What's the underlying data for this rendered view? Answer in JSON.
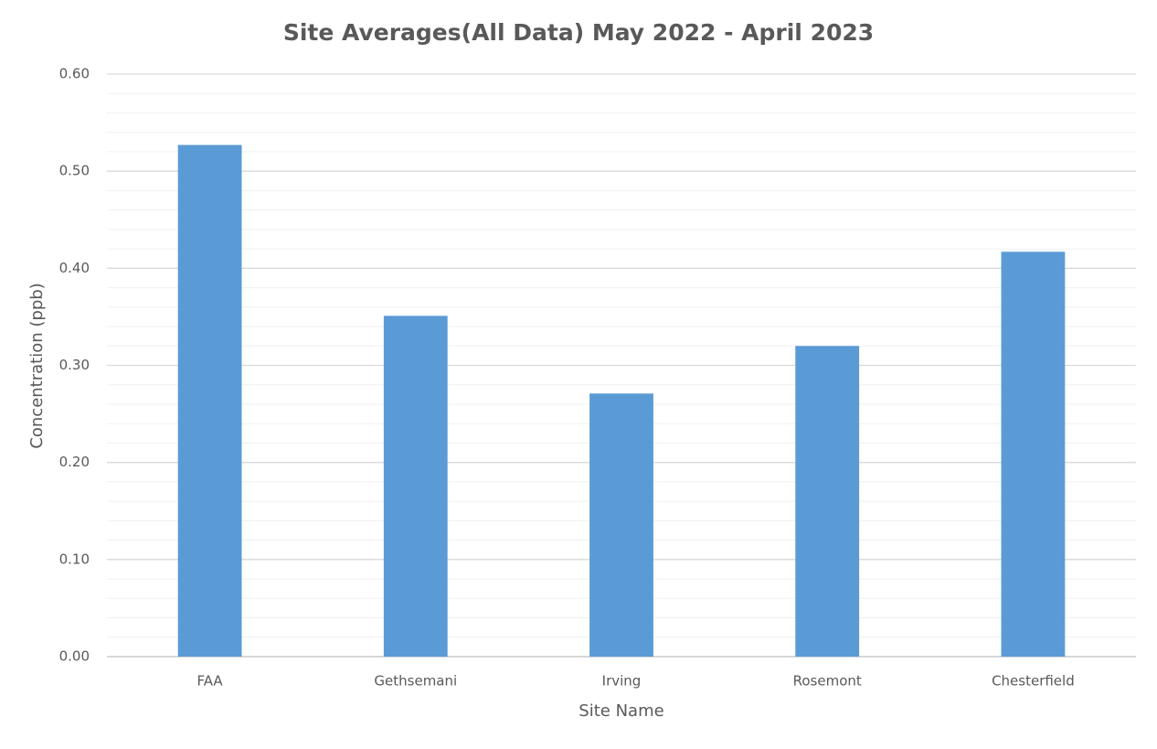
{
  "chart_data": {
    "type": "bar",
    "title": "Site Averages(All  Data)  May 2022 - April 2023",
    "x_label": "Site Name",
    "y_label": "Concentration (ppb)",
    "categories": [
      "FAA",
      "Gethsemani",
      "Irving",
      "Rosemont",
      "Chesterfield"
    ],
    "values": [
      0.527,
      0.351,
      0.271,
      0.32,
      0.417
    ],
    "color": "#5b9bd5",
    "ylim": [
      0,
      0.6
    ],
    "yticks": [
      {
        "value": 0,
        "label": "0.00"
      },
      {
        "value": 0.1,
        "label": "0.10"
      },
      {
        "value": 0.2,
        "label": "0.20"
      },
      {
        "value": 0.3,
        "label": "0.30"
      },
      {
        "value": 0.4,
        "label": "0.40"
      },
      {
        "value": 0.5,
        "label": "0.50"
      },
      {
        "value": 0.6,
        "label": "0.60"
      }
    ],
    "minor_yticks": [
      0.02,
      0.04,
      0.06,
      0.08,
      0.12,
      0.14,
      0.16,
      0.18,
      0.22,
      0.24,
      0.26,
      0.28,
      0.32,
      0.34,
      0.36,
      0.38,
      0.42,
      0.44,
      0.46,
      0.48,
      0.52,
      0.54,
      0.56,
      0.58
    ],
    "grid": true
  }
}
